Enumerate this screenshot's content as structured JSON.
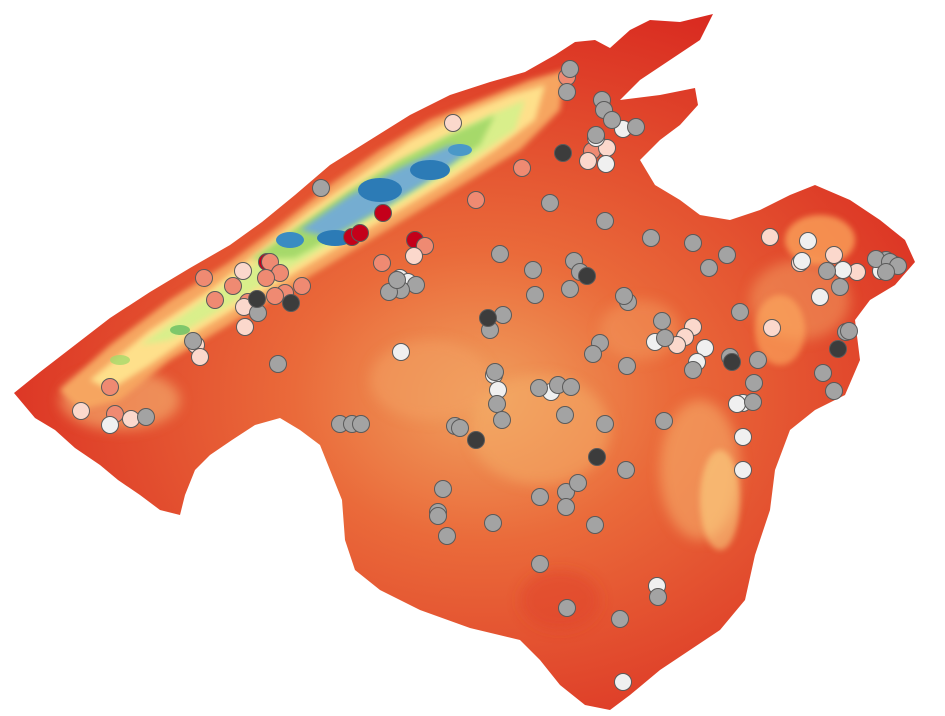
{
  "map": {
    "colors": {
      "background": "#ffffff",
      "lowland": "#d7191c",
      "plain": "#e8432e",
      "midland": "#f46d43",
      "upland": "#fdae61",
      "hill": "#fee08b",
      "ridge": "#d9ef8b",
      "slope": "#a6d96a",
      "highland": "#66bd63",
      "peak_mid": "#74add1",
      "peak": "#2c7bb6"
    },
    "station_classes": [
      {
        "id": "dark-red",
        "fill": "#c4001a"
      },
      {
        "id": "salmon",
        "fill": "#ef8a72"
      },
      {
        "id": "light-pink",
        "fill": "#fbd8cc"
      },
      {
        "id": "white",
        "fill": "#f0f0f0"
      },
      {
        "id": "grey",
        "fill": "#a3a3a3"
      },
      {
        "id": "dark-grey",
        "fill": "#3c3c3c"
      }
    ]
  }
}
